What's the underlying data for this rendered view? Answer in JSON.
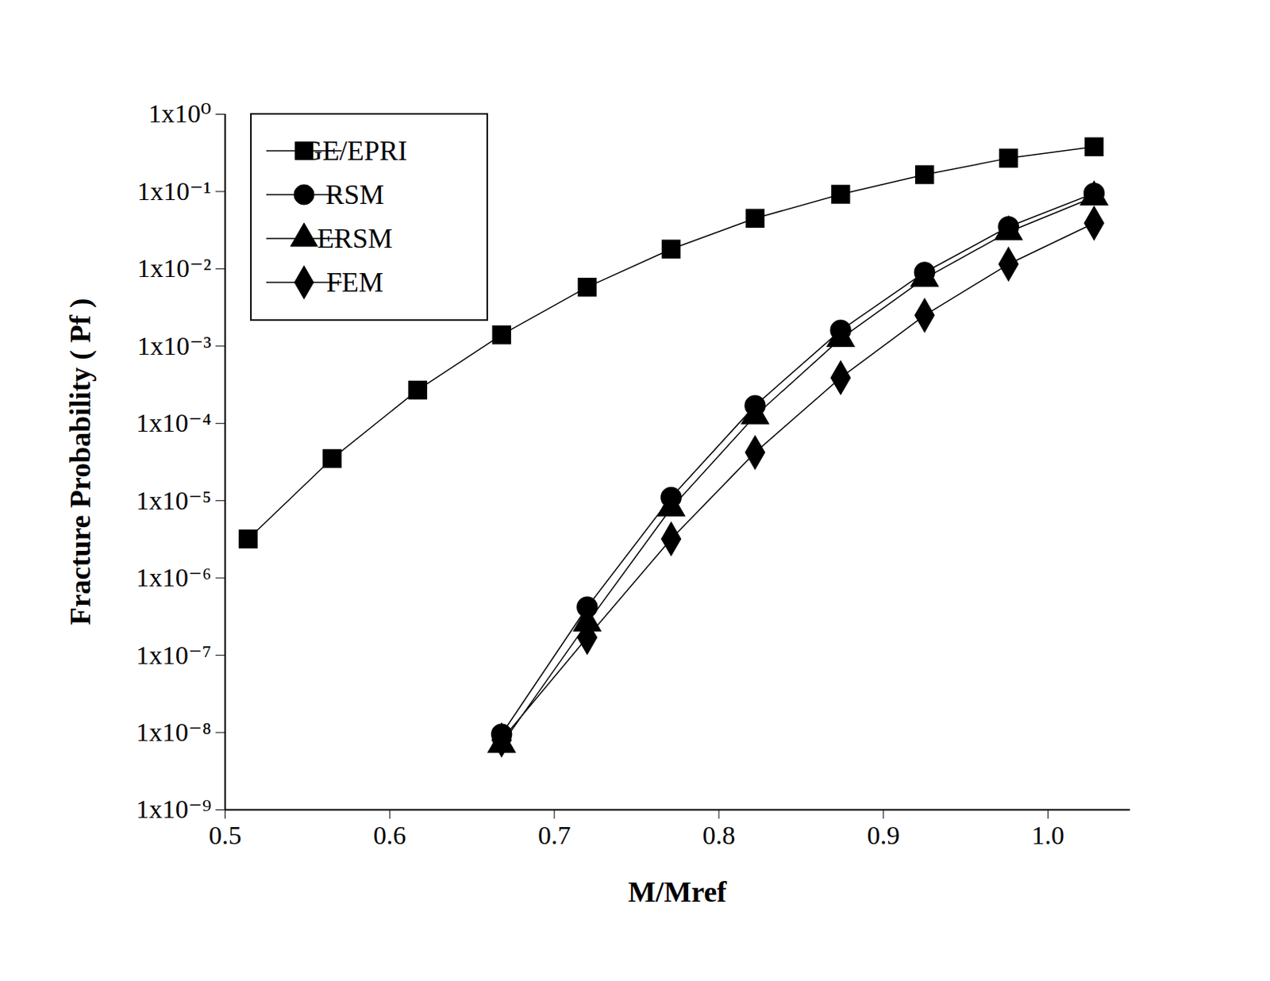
{
  "chart_data": {
    "type": "line",
    "x_label": "M/Mref",
    "y_label": "Fracture Probability ( Pf )",
    "log": "y",
    "grid": false,
    "legend": "upper left",
    "x": [
      0.514,
      0.565,
      0.617,
      0.668,
      0.72,
      0.771,
      0.822,
      0.874,
      0.925,
      0.976,
      1.028
    ],
    "series": [
      {
        "name": "GE/EPRI",
        "color": "#000000",
        "marker": "square",
        "line_style": "solid",
        "values": [
          3.2e-06,
          3.5e-05,
          0.00027,
          0.0014,
          0.0058,
          0.018,
          0.045,
          0.092,
          0.165,
          0.27,
          0.38
        ]
      },
      {
        "name": "RSM",
        "color": "#000000",
        "marker": "circle",
        "line_style": "solid",
        "values": [
          null,
          null,
          null,
          9.5e-09,
          4.2e-07,
          1.1e-05,
          0.00017,
          0.0016,
          0.009,
          0.035,
          0.095
        ]
      },
      {
        "name": "ERSM",
        "color": "#000000",
        "marker": "triangle",
        "line_style": "solid",
        "values": [
          null,
          null,
          null,
          7e-09,
          2.6e-07,
          8e-06,
          0.000125,
          0.00125,
          0.0075,
          0.03,
          0.085
        ]
      },
      {
        "name": "FEM",
        "color": "#000000",
        "marker": "diamond",
        "line_style": "solid",
        "values": [
          null,
          null,
          null,
          8e-09,
          1.7e-07,
          3.2e-06,
          4.2e-05,
          0.00039,
          0.0025,
          0.0115,
          0.039
        ]
      }
    ],
    "xlim": [
      0.5,
      1.05
    ],
    "xticks": [
      {
        "value": 0.5,
        "label": "0.5"
      },
      {
        "value": 0.6,
        "label": "0.6"
      },
      {
        "value": 0.7,
        "label": "0.7"
      },
      {
        "value": 0.8,
        "label": "0.8"
      },
      {
        "value": 0.9,
        "label": "0.9"
      },
      {
        "value": 1.0,
        "label": "1.0"
      }
    ],
    "ylim": [
      1e-09,
      1
    ],
    "yticks": [
      {
        "value": 1e-09,
        "label": "1x10⁻⁹"
      },
      {
        "value": 1e-08,
        "label": "1x10⁻⁸"
      },
      {
        "value": 1e-07,
        "label": "1x10⁻⁷"
      },
      {
        "value": 1e-06,
        "label": "1x10⁻⁶"
      },
      {
        "value": 1e-05,
        "label": "1x10⁻⁵"
      },
      {
        "value": 0.0001,
        "label": "1x10⁻⁴"
      },
      {
        "value": 0.001,
        "label": "1x10⁻³"
      },
      {
        "value": 0.01,
        "label": "1x10⁻²"
      },
      {
        "value": 0.1,
        "label": "1x10⁻¹"
      },
      {
        "value": 1,
        "label": "1x10⁰"
      }
    ]
  }
}
